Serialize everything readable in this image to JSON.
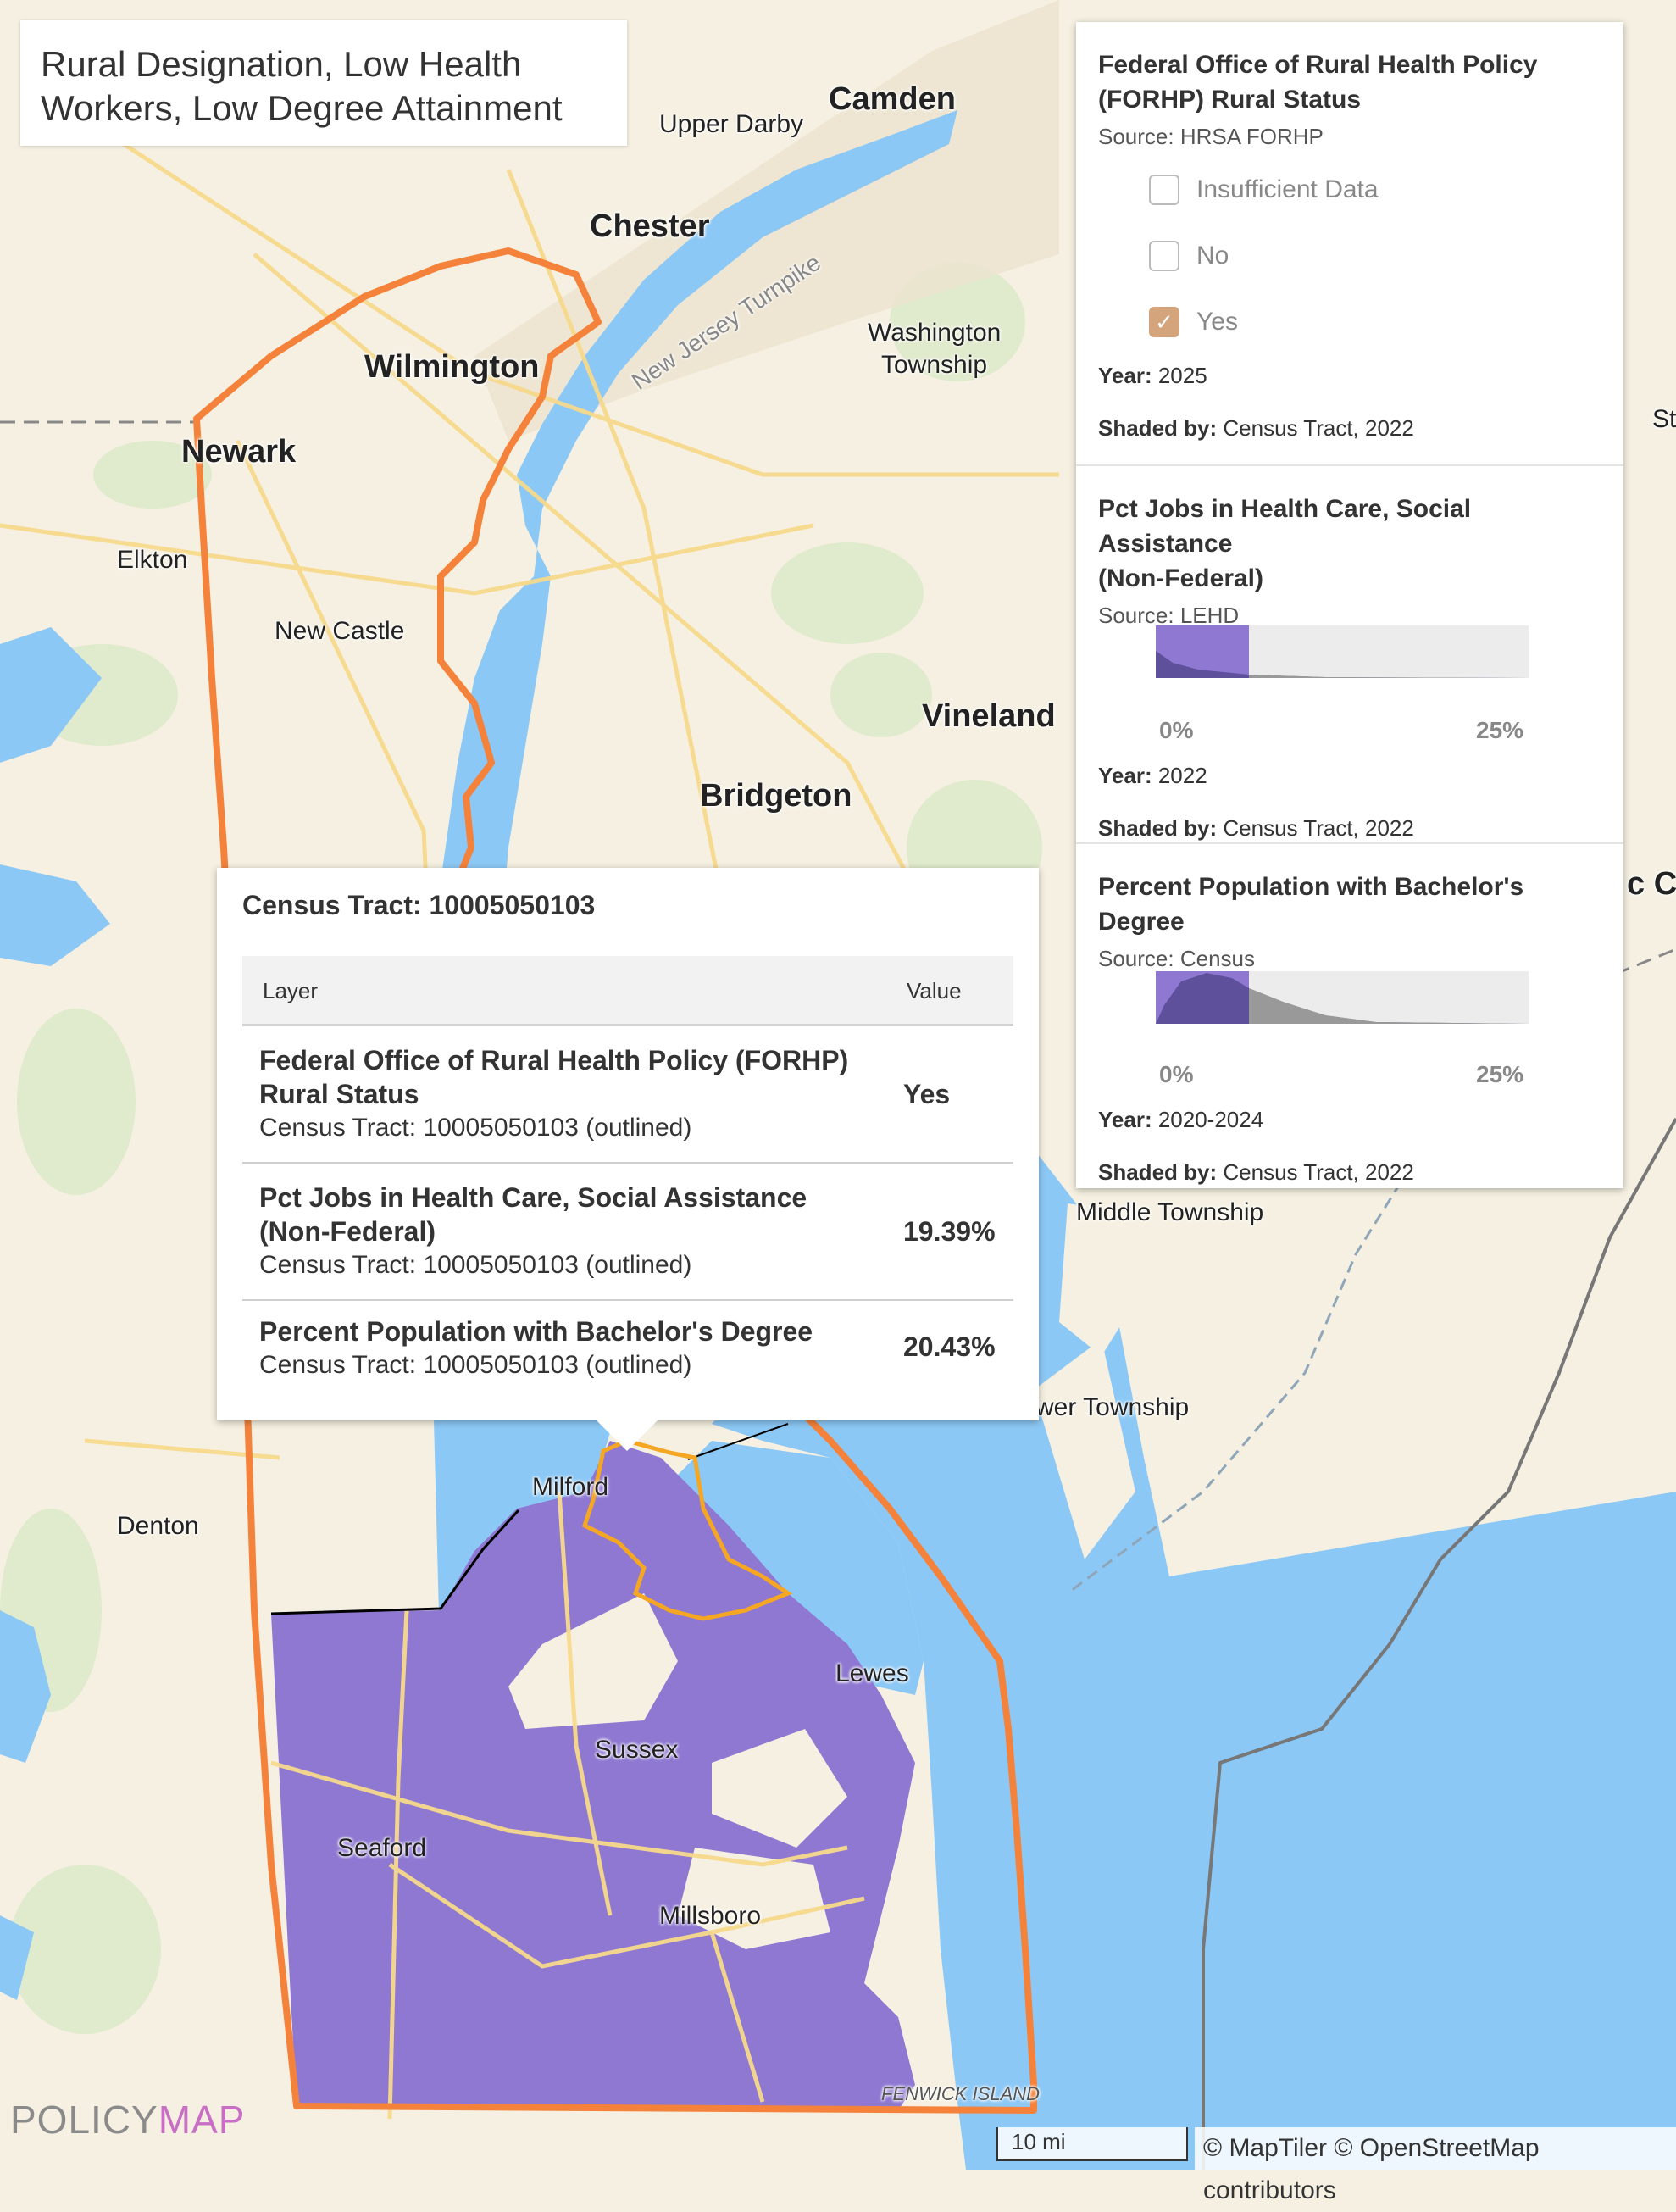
{
  "map": {
    "title_lines": [
      "Rural Designation, Low Health",
      "Workers, Low Degree Attainment"
    ],
    "colors": {
      "land": "#f5f0e1",
      "water": "#8cc8f5",
      "highlight": "#8e78d2",
      "boundary": "#f5823a",
      "road": "#f7d98b",
      "tract_outline": "#f5a623"
    },
    "places": {
      "camden": "Camden",
      "upper_darby": "Upper Darby",
      "chester": "Chester",
      "wilmington": "Wilmington",
      "washington_township_1": "Washington",
      "washington_township_2": "Township",
      "new_jersey_turnpike": "New Jersey Turnpike",
      "newark": "Newark",
      "elkton": "Elkton",
      "new_castle": "New Castle",
      "vineland": "Vineland",
      "bridgeton": "Bridgeton",
      "middle_township": "Middle Township",
      "lower_township": "wer Township",
      "milford": "Milford",
      "denton": "Denton",
      "lewes": "Lewes",
      "sussex": "Sussex",
      "seaford": "Seaford",
      "millsboro": "Millsboro",
      "fenwick_island": "FENWICK ISLAND",
      "edge_st": "St",
      "edge_city": "c Ci"
    }
  },
  "legend": {
    "sections": [
      {
        "title_lines": [
          "Federal Office of Rural Health Policy",
          "(FORHP) Rural Status"
        ],
        "source": "Source: HRSA FORHP",
        "options": [
          {
            "label": "Insufficient Data",
            "checked": false
          },
          {
            "label": "No",
            "checked": false
          },
          {
            "label": "Yes",
            "checked": true
          }
        ],
        "year_label": "Year:",
        "year": "2025",
        "shaded_label": "Shaded by:",
        "shaded": "Census Tract, 2022"
      },
      {
        "title_lines": [
          "Pct Jobs in Health Care, Social Assistance",
          "(Non-Federal)"
        ],
        "source": "Source: LEHD",
        "range_min": "0%",
        "range_max": "25%",
        "selected_fraction": 0.25,
        "year_label": "Year:",
        "year": "2022",
        "shaded_label": "Shaded by:",
        "shaded": "Census Tract, 2022"
      },
      {
        "title_lines": [
          "Percent Population with Bachelor's Degree"
        ],
        "source": "Source: Census",
        "range_min": "0%",
        "range_max": "25%",
        "selected_fraction": 0.25,
        "year_label": "Year:",
        "year": "2020-2024",
        "shaded_label": "Shaded by:",
        "shaded": "Census Tract, 2022"
      }
    ]
  },
  "popup": {
    "title": "Census Tract: 10005050103",
    "col_layer": "Layer",
    "col_value": "Value",
    "rows": [
      {
        "layer_lines": [
          "Federal Office of Rural Health Policy (FORHP)",
          "Rural Status"
        ],
        "geo": "Census Tract: 10005050103 (outlined)",
        "value": "Yes"
      },
      {
        "layer_lines": [
          "Pct Jobs in Health Care, Social Assistance",
          "(Non-Federal)"
        ],
        "geo": "Census Tract: 10005050103 (outlined)",
        "value": "19.39%"
      },
      {
        "layer_lines": [
          "Percent Population with Bachelor's Degree"
        ],
        "geo": "Census Tract: 10005050103 (outlined)",
        "value": "20.43%"
      }
    ]
  },
  "footer": {
    "logo_a": "POLICY",
    "logo_b": "MAP",
    "scale": "10 mi",
    "attribution": "© MapTiler © OpenStreetMap contributors"
  }
}
